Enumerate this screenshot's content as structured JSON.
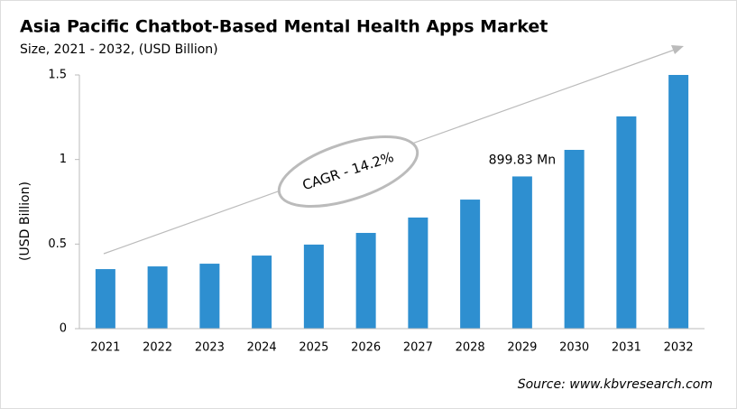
{
  "chart_data": {
    "type": "bar",
    "title": "Asia Pacific Chatbot-Based Mental Health Apps Market",
    "subtitle": "Size, 2021 - 2032, (USD Billion)",
    "y_label": "(USD Billion)",
    "categories": [
      "2021",
      "2022",
      "2023",
      "2024",
      "2025",
      "2026",
      "2027",
      "2028",
      "2029",
      "2030",
      "2031",
      "2032"
    ],
    "values": [
      0.352,
      0.368,
      0.384,
      0.432,
      0.497,
      0.566,
      0.657,
      0.763,
      0.89983,
      1.057,
      1.255,
      1.5
    ],
    "value_labels": [
      null,
      null,
      null,
      null,
      null,
      null,
      null,
      null,
      "899.83 Mn",
      null,
      null,
      null
    ],
    "color": "#2e8fd0",
    "ylim": [
      0,
      1.5
    ],
    "yticks": [
      0,
      0.5,
      1,
      1.5
    ],
    "grid": false,
    "annotation": "CAGR - 14.2%",
    "source": "Source: www.kbvresearch.com"
  }
}
